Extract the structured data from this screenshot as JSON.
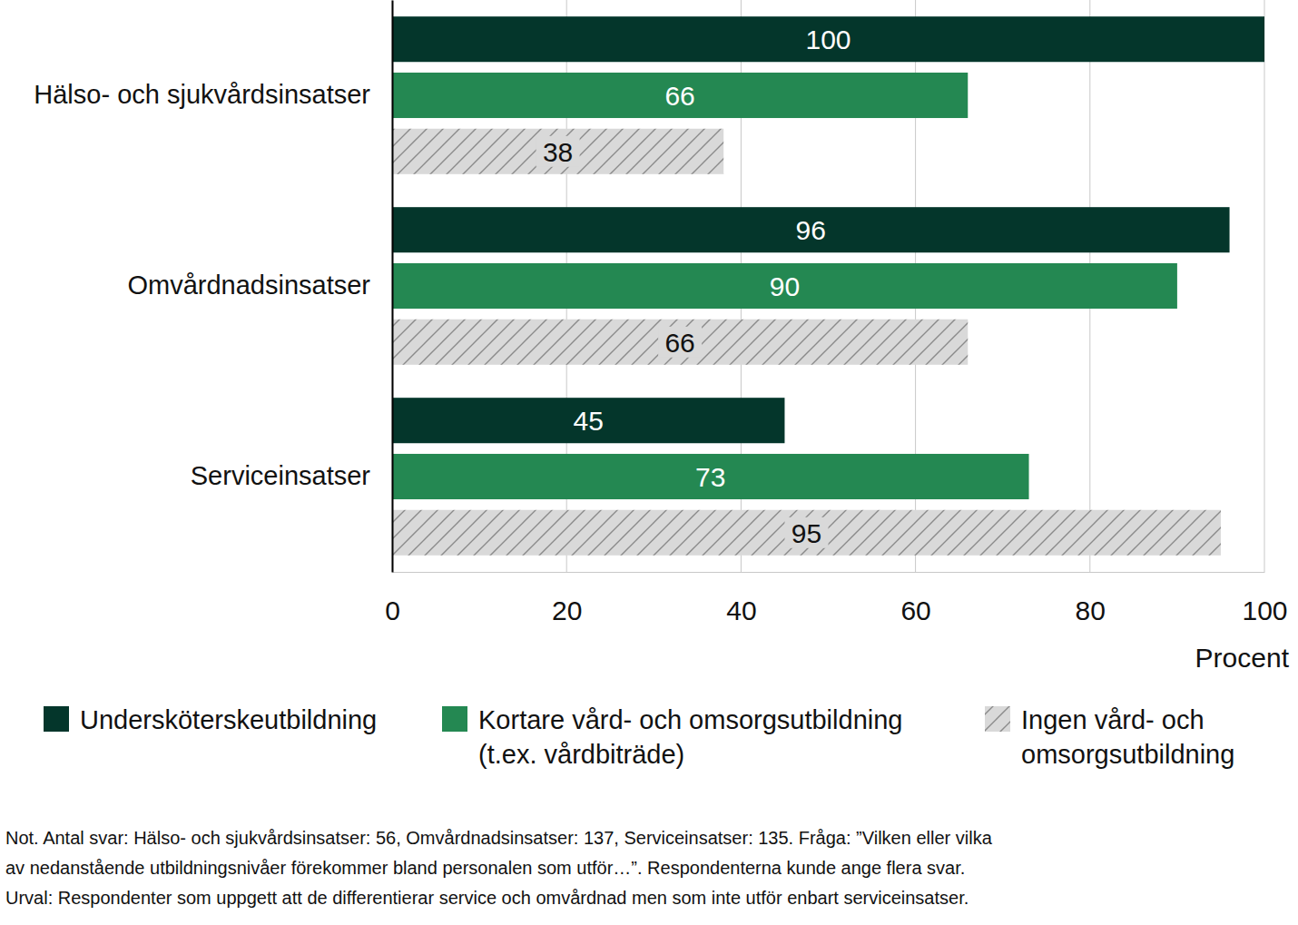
{
  "chart_data": {
    "type": "bar",
    "orientation": "horizontal",
    "categories": [
      "Hälso- och sjukvårdsinsatser",
      "Omvårdnadsinsatser",
      "Serviceinsatser"
    ],
    "series": [
      {
        "name": "Undersköterskeutbildning",
        "color": "#04362b",
        "values": [
          100,
          96,
          45
        ]
      },
      {
        "name": "Kortare vård- och omsorgsutbildning\n(t.ex. vårdbiträde)",
        "color": "#248852",
        "values": [
          66,
          90,
          73
        ]
      },
      {
        "name": "Ingen vård- och\nomsorgsutbildning",
        "color": "#d9d9d9",
        "line_style": "hatched",
        "values": [
          38,
          66,
          95
        ]
      }
    ],
    "xlim": [
      0,
      100
    ],
    "xticks": [
      0,
      20,
      40,
      60,
      80,
      100
    ],
    "x_label": "Procent",
    "grid": true,
    "data_labels": true,
    "legend": "bottom",
    "note": [
      "Not. Antal svar: Hälso- och sjukvårdsinsatser: 56, Omvårdnadsinsatser: 137, Serviceinsatser: 135. Fråga: ”Vilken eller vilka",
      "av nedanstående utbildningsnivåer förekommer bland personalen som utför…”. Respondenterna kunde ange flera svar.",
      "Urval: Respondenter som uppgett att de differentierar service och omvårdnad men som inte utför enbart serviceinsatser."
    ]
  }
}
